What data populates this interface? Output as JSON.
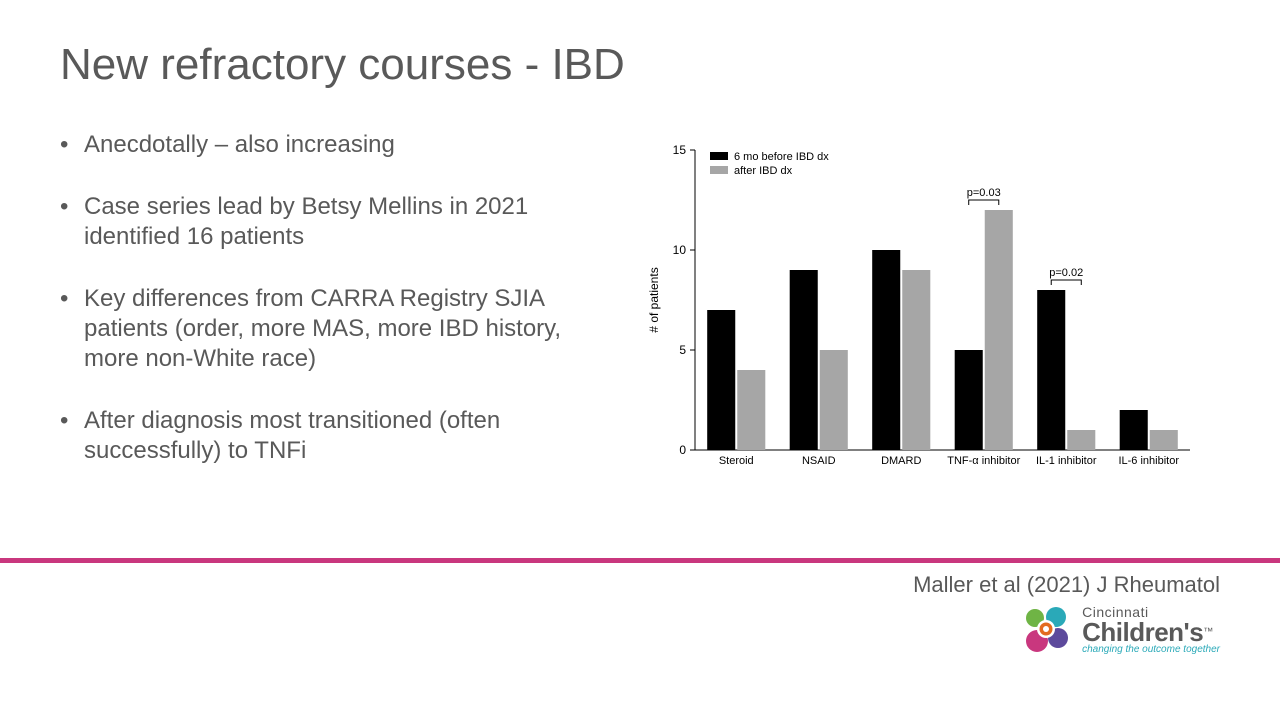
{
  "title": "New refractory courses - IBD",
  "bullets": [
    "Anecdotally – also increasing",
    "Case series lead by Betsy Mellins in 2021 identified 16 patients",
    "Key differences from CARRA Registry SJIA patients (order, more MAS, more IBD history, more non-White race)",
    "After diagnosis most transitioned (often successfully) to TNFi"
  ],
  "citation": "Maller et al (2021) J Rheumatol",
  "logo": {
    "line1": "Cincinnati",
    "line2": "Children's",
    "tag": "changing the outcome together"
  },
  "chart": {
    "type": "bar",
    "ylabel": "# of patients",
    "ylim": [
      0,
      15
    ],
    "yticks": [
      0,
      5,
      10,
      15
    ],
    "categories": [
      "Steroid",
      "NSAID",
      "DMARD",
      "TNF-α inhibitor",
      "IL-1 inhibitor",
      "IL-6 inhibitor"
    ],
    "series": [
      {
        "label": "6 mo before IBD dx",
        "color": "#000000",
        "values": [
          7,
          9,
          10,
          5,
          8,
          2
        ]
      },
      {
        "label": "after IBD dx",
        "color": "#a6a6a6",
        "values": [
          4,
          5,
          9,
          12,
          1,
          1
        ]
      }
    ],
    "pvalues": [
      {
        "category_index": 3,
        "label": "p=0.03"
      },
      {
        "category_index": 4,
        "label": "p=0.02"
      }
    ],
    "background_color": "#ffffff",
    "axis_color": "#000000",
    "tick_fontsize": 12,
    "cat_fontsize": 11,
    "bar_width_ratio": 0.34,
    "group_gap_ratio": 0.32
  },
  "divider_color": "#c9377e"
}
